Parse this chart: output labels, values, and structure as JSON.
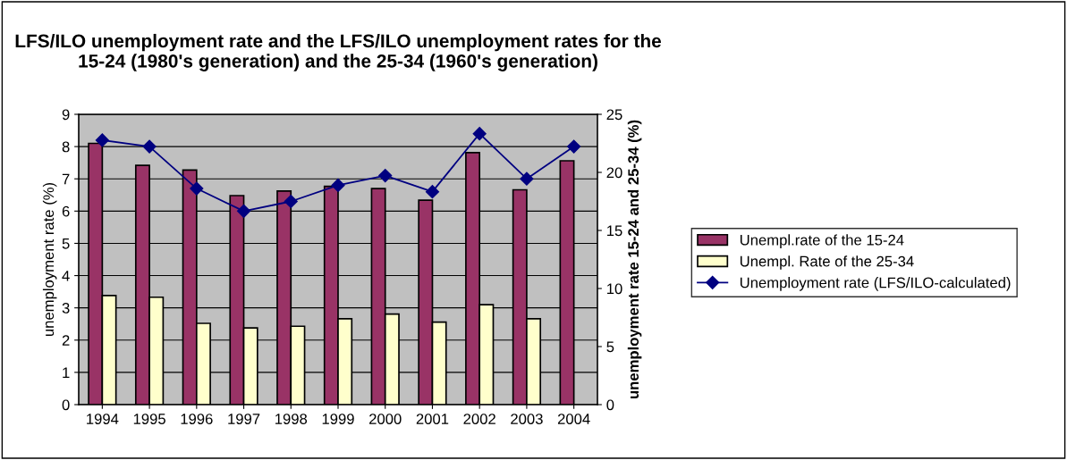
{
  "chart_data": {
    "type": "bar",
    "title": "LFS/ILO unemployment rate and the LFS/ILO unemployment rates for the 15-24 (1980's generation) and the 25-34 (1960's generation)",
    "ylabel": "unemployment rate (%)",
    "y2label": "unemployment rate 15-24 and 25-34 (%)",
    "categories": [
      "1994",
      "1995",
      "1996",
      "1997",
      "1998",
      "1999",
      "2000",
      "2001",
      "2002",
      "2003",
      "2004"
    ],
    "series": [
      {
        "name": "Unempl.rate of the 15-24",
        "color": "#993366",
        "axis": "y2",
        "values": [
          22.5,
          20.6,
          20.2,
          18.0,
          18.4,
          18.8,
          18.6,
          17.6,
          21.7,
          18.5,
          21.0
        ]
      },
      {
        "name": "Unempl. Rate of the 25-34",
        "color": "#ffffcc",
        "axis": "y2",
        "values": [
          9.4,
          9.25,
          7.0,
          6.6,
          6.75,
          7.4,
          7.8,
          7.1,
          8.6,
          7.4,
          null
        ]
      },
      {
        "name": "Unemployment rate (LFS/ILO-calculated)",
        "color": "#000080",
        "type": "line",
        "marker": "diamond",
        "values": [
          8.2,
          8.0,
          6.7,
          6.0,
          6.3,
          6.8,
          7.1,
          6.6,
          8.4,
          7.0,
          8.0
        ]
      }
    ],
    "ylim": [
      0,
      9
    ],
    "yticks": [
      0,
      1,
      2,
      3,
      4,
      5,
      6,
      7,
      8,
      9
    ],
    "y2lim": [
      0,
      25
    ],
    "y2ticks": [
      0,
      5,
      10,
      15,
      20,
      25
    ],
    "grid": "y",
    "legend": "right"
  }
}
